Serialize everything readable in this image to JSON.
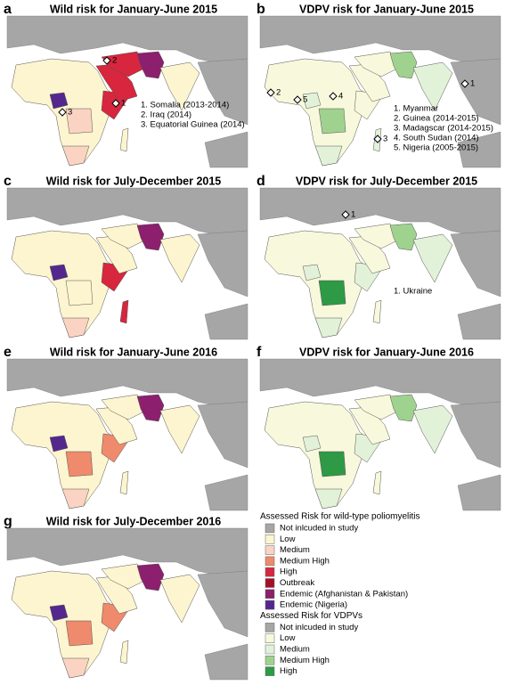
{
  "panels": [
    {
      "letter": "a",
      "title": "Wild risk for January-June 2015",
      "markers": [
        "2",
        "3",
        "1"
      ],
      "notes": [
        "1. Somalia (2013-2014)",
        "2. Iraq (2014)",
        "3. Equatorial Guinea (2014)"
      ]
    },
    {
      "letter": "b",
      "title": "VDPV risk for January-June 2015",
      "markers": [
        "1",
        "2",
        "5",
        "4",
        "3"
      ],
      "notes": [
        "1. Myanmar",
        "2. Guinea (2014-2015)",
        "3. Madagscar (2014-2015)",
        "4. South Sudan (2014)",
        "5. Nigeria (2005-2015)"
      ]
    },
    {
      "letter": "c",
      "title": "Wild risk for July-December 2015",
      "markers": [],
      "notes": []
    },
    {
      "letter": "d",
      "title": "VDPV risk for July-December 2015",
      "markers": [
        "1"
      ],
      "notes": [
        "1. Ukraine"
      ]
    },
    {
      "letter": "e",
      "title": "Wild risk for January-June 2016",
      "markers": [],
      "notes": []
    },
    {
      "letter": "f",
      "title": "VDPV risk for January-June 2016",
      "markers": [],
      "notes": []
    },
    {
      "letter": "g",
      "title": "Wild risk for July-December 2016",
      "markers": [],
      "notes": []
    }
  ],
  "legend": {
    "wild": {
      "title": "Assessed Risk for wild-type poliomyelitis",
      "items": [
        {
          "label": "Not inlcuded in study",
          "color": "#a6a6a6"
        },
        {
          "label": "Low",
          "color": "#fdf5cf"
        },
        {
          "label": "Medium",
          "color": "#fbd3c3"
        },
        {
          "label": "Medium High",
          "color": "#ef8a6c"
        },
        {
          "label": "High",
          "color": "#d7263d"
        },
        {
          "label": "Outbreak",
          "color": "#a50f25"
        },
        {
          "label": "Endemic (Afghanistan & Pakistan)",
          "color": "#8c1f6e"
        },
        {
          "label": "Endemic (Nigeria)",
          "color": "#54278f"
        }
      ]
    },
    "vdpv": {
      "title": "Assessed Risk for VDPVs",
      "items": [
        {
          "label": "Not inlcuded in study",
          "color": "#a6a6a6"
        },
        {
          "label": "Low",
          "color": "#f8f8dc"
        },
        {
          "label": "Medium",
          "color": "#e2f2d9"
        },
        {
          "label": "Medium High",
          "color": "#9fd28f"
        },
        {
          "label": "High",
          "color": "#2e9a45"
        }
      ]
    }
  }
}
